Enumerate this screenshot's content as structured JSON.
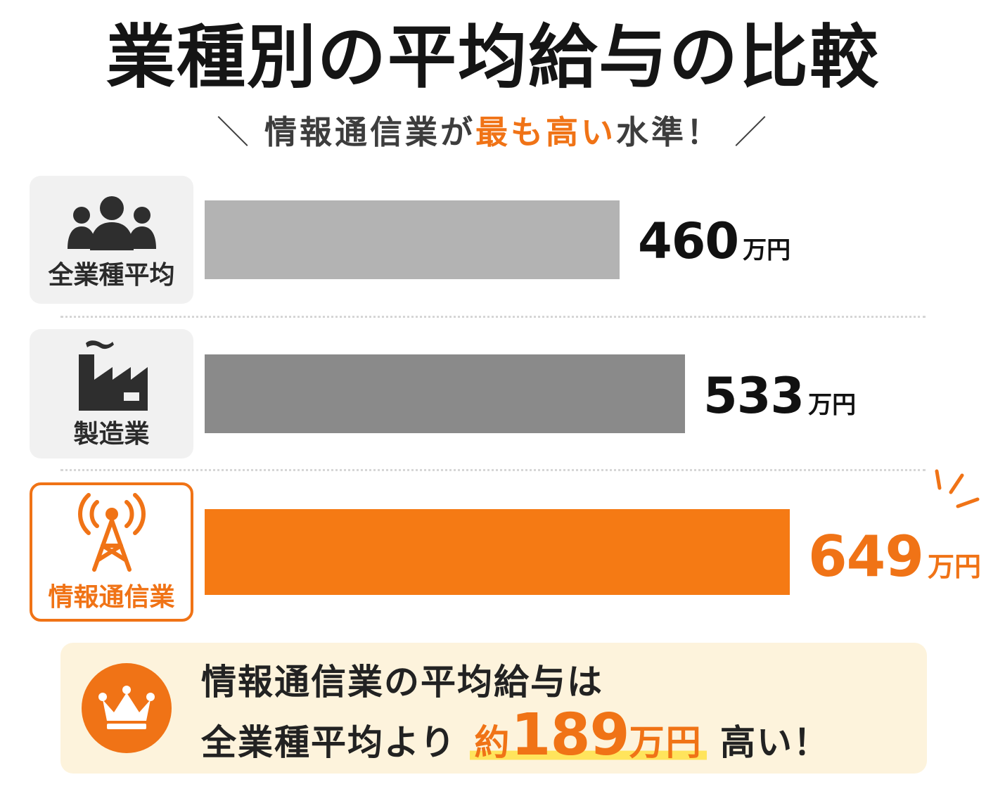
{
  "chart_data": {
    "type": "bar",
    "orientation": "horizontal",
    "title": "業種別の平均給与の比較",
    "subtitle_parts": [
      "情報通信業が",
      "最も高い",
      "水準！"
    ],
    "unit": "万円",
    "categories": [
      "全業種平均",
      "製造業",
      "情報通信業"
    ],
    "values": [
      460,
      533,
      649
    ],
    "value_labels": [
      "460",
      "533",
      "649"
    ],
    "bar_colors": [
      "#b3b3b3",
      "#8a8a8a",
      "#f57a14"
    ],
    "value_colors": [
      "#111111",
      "#111111",
      "#f07316"
    ],
    "icons": [
      "people-group-icon",
      "factory-icon",
      "radio-tower-icon"
    ],
    "highlight": "情報通信業",
    "xlim": [
      0,
      649
    ]
  },
  "callout": {
    "icon": "crown-icon",
    "line1": "情報通信業の平均給与は",
    "line2_prefix": "全業種平均より",
    "line2_highlight_pre": "約",
    "line2_highlight_num": "189",
    "line2_highlight_unit": "万円",
    "line2_suffix": "高い！"
  },
  "colors": {
    "accent": "#f07316",
    "callout_bg": "#fdf3dc",
    "marker": "#ffe45c"
  }
}
